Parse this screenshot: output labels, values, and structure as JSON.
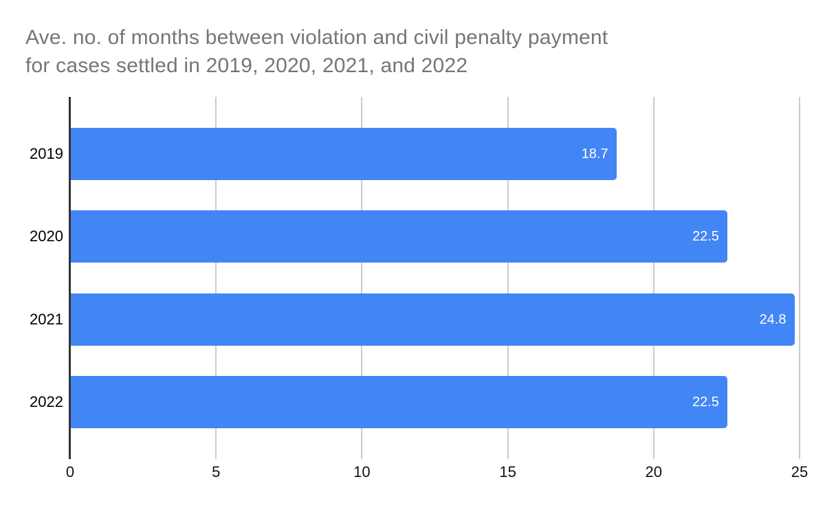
{
  "title_lines": [
    "Ave. no. of months between violation and civil penalty payment",
    "for cases settled in 2019, 2020, 2021, and 2022"
  ],
  "chart_data": {
    "type": "bar",
    "orientation": "horizontal",
    "title": "Ave. no. of months between violation and civil penalty payment for cases settled in 2019, 2020, 2021, and 2022",
    "categories": [
      "2019",
      "2020",
      "2021",
      "2022"
    ],
    "values": [
      18.7,
      22.5,
      24.8,
      22.5
    ],
    "value_labels": [
      "18.7",
      "22.5",
      "24.8",
      "22.5"
    ],
    "xlabel": "",
    "ylabel": "",
    "xlim": [
      0,
      25
    ],
    "xticks": [
      "0",
      "5",
      "10",
      "15",
      "20",
      "25"
    ],
    "xtick_values": [
      0,
      5,
      10,
      15,
      20,
      25
    ],
    "grid": true,
    "legend": false,
    "colors": {
      "bar": "#4285f4",
      "bar_value_text": "#ffffff",
      "title_text": "#757575",
      "gridline": "#cccccc",
      "axis_line": "#333333",
      "tick_text": "#111111",
      "category_text": "#000000",
      "background": "#ffffff"
    }
  }
}
